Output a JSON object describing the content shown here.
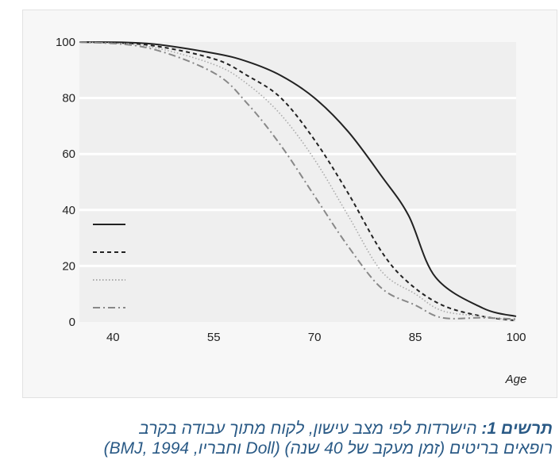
{
  "chart_data": {
    "type": "line",
    "xlabel": "Age",
    "ylabel": "",
    "xlim": [
      35,
      100
    ],
    "ylim": [
      0,
      100
    ],
    "xticks": [
      40,
      55,
      70,
      85,
      100
    ],
    "yticks": [
      0,
      20,
      40,
      60,
      80,
      100
    ],
    "grid": true,
    "legend": "left, lines only without labels",
    "series": [
      {
        "style": "solid",
        "color": "#222222",
        "x": [
          35,
          45,
          55,
          60,
          65,
          70,
          75,
          80,
          84,
          88,
          95,
          100
        ],
        "y": [
          100,
          99.5,
          96,
          93,
          88,
          80,
          68,
          52,
          38,
          16,
          5,
          2
        ]
      },
      {
        "style": "dashed",
        "color": "#222222",
        "x": [
          35,
          45,
          55,
          60,
          65,
          70,
          75,
          80,
          84,
          89,
          95,
          100
        ],
        "y": [
          100,
          99,
          94,
          88,
          80,
          65,
          46,
          25,
          14,
          6,
          2,
          0.5
        ]
      },
      {
        "style": "dotted",
        "color": "#aaaaaa",
        "x": [
          35,
          45,
          55,
          60,
          65,
          70,
          75,
          80,
          85,
          89,
          95,
          100
        ],
        "y": [
          100,
          98.5,
          92,
          85,
          74,
          58,
          38,
          18,
          10,
          4,
          2,
          0.5
        ]
      },
      {
        "style": "dash-dot",
        "color": "#888888",
        "x": [
          35,
          45,
          55,
          60,
          65,
          70,
          75,
          80,
          85,
          89,
          95,
          100
        ],
        "y": [
          100,
          98,
          89,
          78,
          63,
          45,
          27,
          12,
          6,
          1.5,
          1.5,
          1
        ]
      }
    ]
  },
  "caption": {
    "label": "תרשים 1:",
    "line1": "הישרדות לפי מצב עישון, לקוח מתוך עבודה בקרב",
    "line2": "רופאים בריטים (זמן מעקב של 40 שנה) (Doll וחבריו, BMJ, 1994)"
  }
}
